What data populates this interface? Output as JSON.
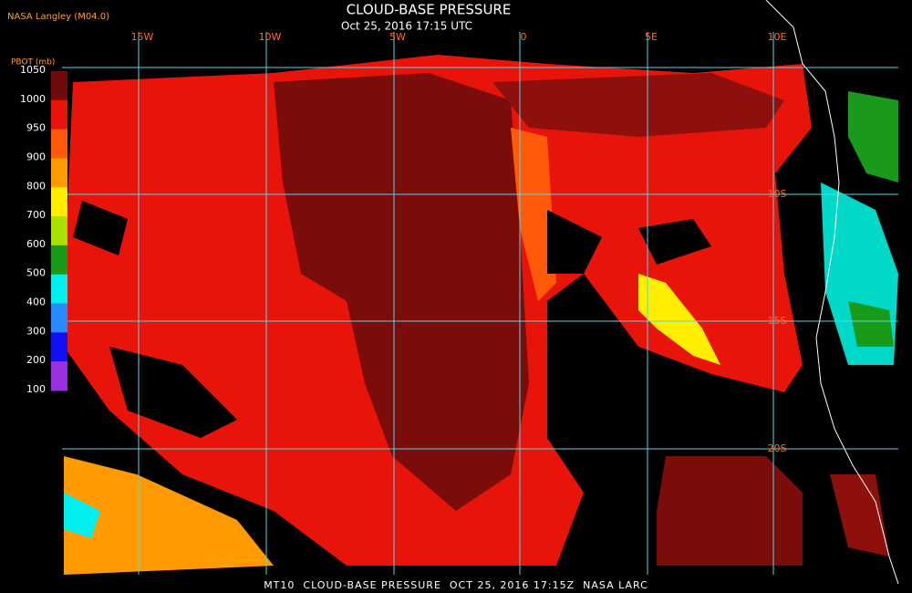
{
  "header": {
    "source": "NASA Langley (M04.0)",
    "title": "CLOUD-BASE PRESSURE",
    "subtitle": "Oct 25, 2016 17:15 UTC"
  },
  "colorbar": {
    "label": "PBOT (mb)",
    "ticks": [
      "1050",
      "1000",
      "950",
      "900",
      "800",
      "700",
      "600",
      "500",
      "400",
      "300",
      "200",
      "100"
    ],
    "colors": [
      "#6e0a0a",
      "#e8140a",
      "#ff5a0a",
      "#ff9a00",
      "#ffee00",
      "#a8e000",
      "#1a9a1a",
      "#00f0f0",
      "#2a8aff",
      "#1010f0",
      "#9a30e0"
    ]
  },
  "map": {
    "lon_labels": [
      "15W",
      "10W",
      "5W",
      "0",
      "5E",
      "10E"
    ],
    "lat_labels": [
      "10S",
      "15S",
      "20S"
    ]
  },
  "footer": "MT10  CLOUD-BASE PRESSURE  OCT 25, 2016 17:15Z  NASA LARC"
}
